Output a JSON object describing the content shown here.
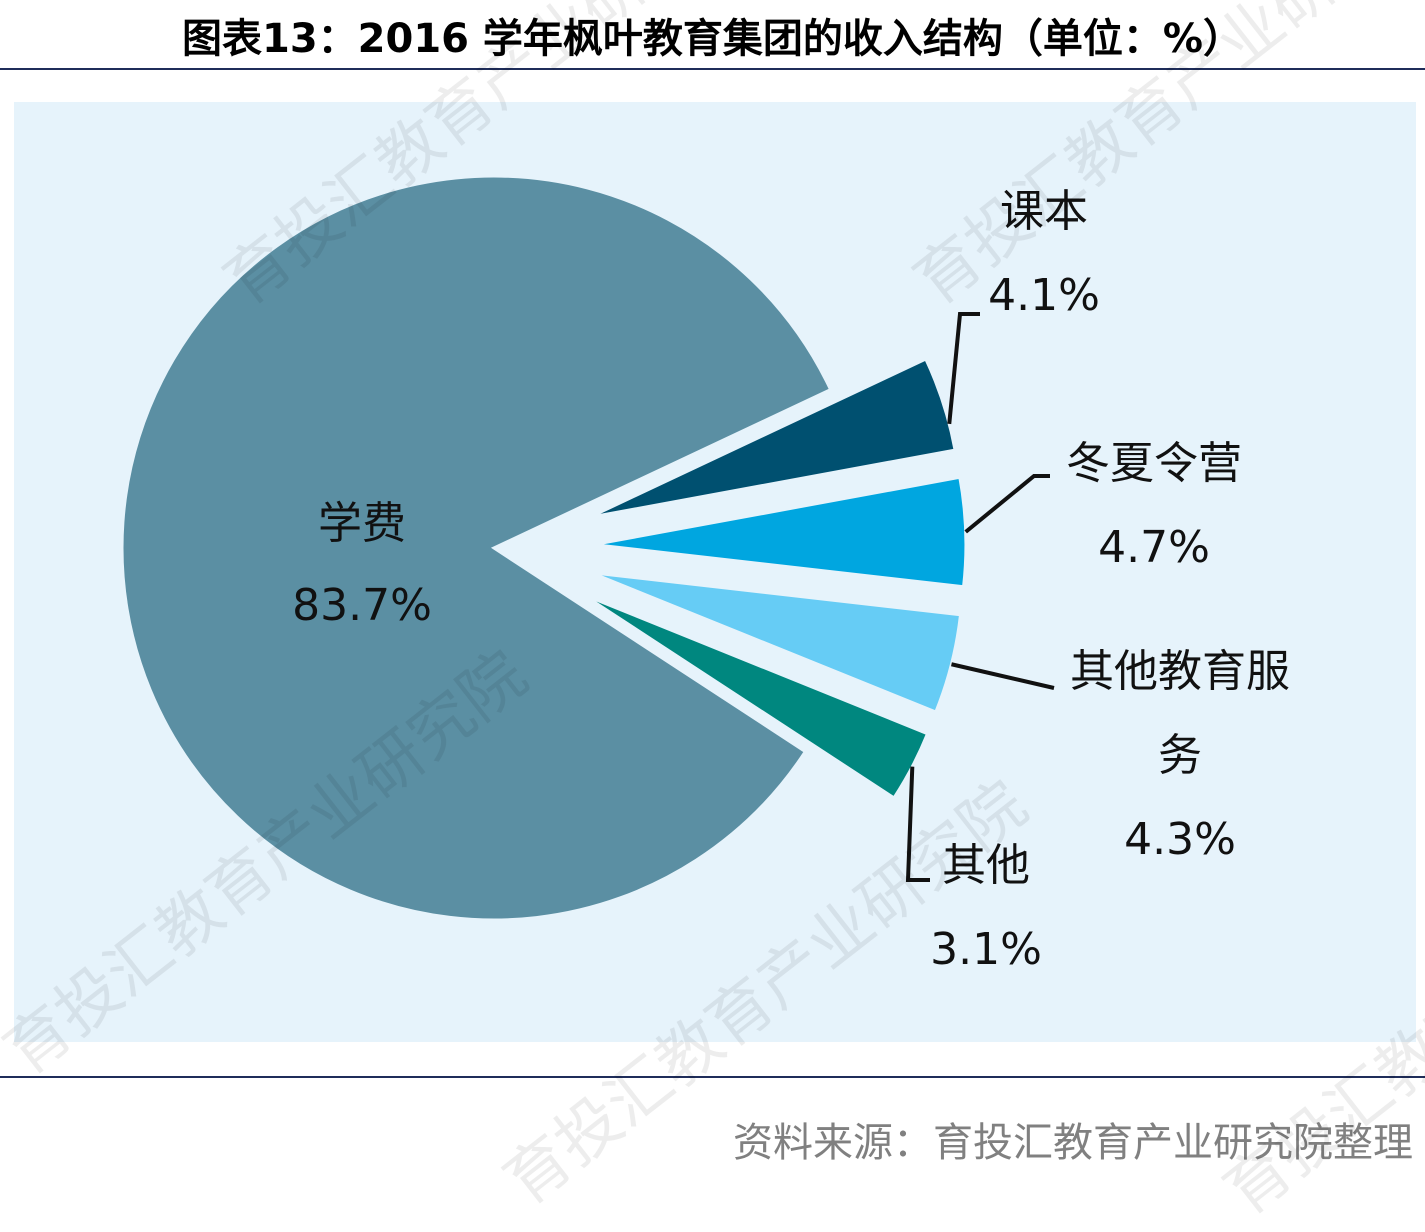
{
  "title": "图表13：2016 学年枫叶教育集团的收入结构（单位：%）",
  "source": "资料来源：育投汇教育产业研究院整理",
  "watermark": "育投汇教育产业研究院",
  "chart_data": {
    "type": "pie",
    "title": "图表13：2016 学年枫叶教育集团的收入结构（单位：%）",
    "exploded": true,
    "slices": [
      {
        "label": "学费",
        "value": 83.7,
        "value_label": "83.7%",
        "color": "#5b8fa3"
      },
      {
        "label": "课本",
        "value": 4.1,
        "value_label": "4.1%",
        "color": "#005070"
      },
      {
        "label": "冬夏令营",
        "value": 4.7,
        "value_label": "4.7%",
        "color": "#00a6e0"
      },
      {
        "label": "其他教育服务",
        "value": 4.3,
        "value_label": "4.3%",
        "color": "#66ccf5"
      },
      {
        "label": "其他",
        "value": 3.1,
        "value_label": "3.1%",
        "color": "#00877f"
      }
    ]
  }
}
